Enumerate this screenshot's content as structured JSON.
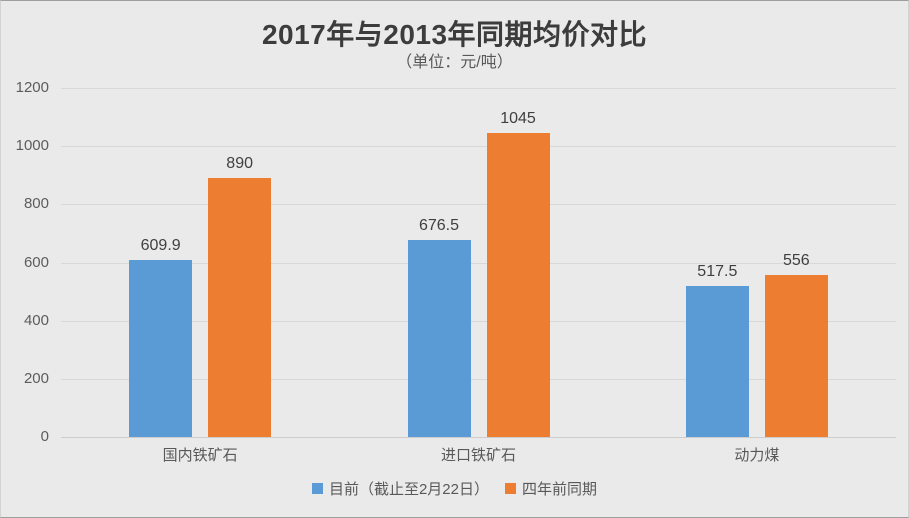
{
  "chart_data": {
    "type": "bar",
    "title": "2017年与2013年同期均价对比",
    "subtitle": "（单位：元/吨）",
    "categories": [
      "国内铁矿石",
      "进口铁矿石",
      "动力煤"
    ],
    "series": [
      {
        "name": "目前（截止至2月22日）",
        "color": "#5B9BD5",
        "values": [
          609.9,
          676.5,
          517.5
        ],
        "labels": [
          "609.9",
          "676.5",
          "517.5"
        ]
      },
      {
        "name": "四年前同期",
        "color": "#ED7D31",
        "values": [
          890,
          1045,
          556
        ],
        "labels": [
          "890",
          "1045",
          "556"
        ]
      }
    ],
    "ylim": [
      0,
      1200
    ],
    "yticks": [
      0,
      200,
      400,
      600,
      800,
      1000,
      1200
    ],
    "grid": true,
    "legend_position": "bottom"
  },
  "colors": {
    "background": "#EAEAEA",
    "gridline": "#D8D8D8",
    "series_blue": "#5B9BD5",
    "series_orange": "#ED7D31",
    "title_text": "#3C3C3C",
    "axis_text": "#595959",
    "value_text": "#3F3F3F"
  }
}
